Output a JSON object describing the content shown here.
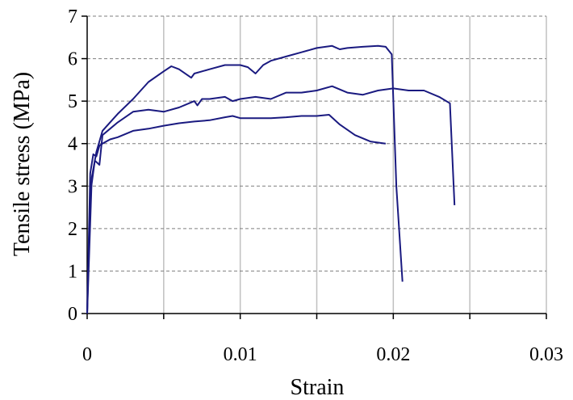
{
  "chart_data": {
    "type": "line",
    "title": "",
    "xlabel": "Strain",
    "ylabel": "Tensile stress (MPa)",
    "xlim": [
      0,
      0.03
    ],
    "ylim": [
      0,
      7
    ],
    "xticks": [
      0,
      0.005,
      0.01,
      0.015,
      0.02,
      0.025,
      0.03
    ],
    "xtick_labels": [
      "0",
      "",
      "0.01",
      "",
      "0.02",
      "",
      "0.03"
    ],
    "yticks": [
      0,
      1,
      2,
      3,
      4,
      5,
      6,
      7
    ],
    "ytick_labels": [
      "0",
      "1",
      "2",
      "3",
      "4",
      "5",
      "6",
      "7"
    ],
    "grid": {
      "vertical": true,
      "horizontal": "dashed"
    },
    "colors": {
      "series": "#1a1a80",
      "grid_v": "#c0c0c0",
      "grid_h": "#7f7f7f"
    },
    "series": [
      {
        "x": [
          0,
          0.0002,
          0.0004,
          0.0006,
          0.0008,
          0.001,
          0.0015,
          0.002,
          0.003,
          0.004,
          0.005,
          0.006,
          0.007,
          0.008,
          0.009,
          0.0095,
          0.01,
          0.011,
          0.012,
          0.013,
          0.014,
          0.015,
          0.0158,
          0.0165,
          0.0175,
          0.0185,
          0.0195
        ],
        "y": [
          0,
          3.3,
          3.75,
          3.7,
          3.95,
          4.0,
          4.1,
          4.15,
          4.3,
          4.35,
          4.42,
          4.48,
          4.52,
          4.55,
          4.62,
          4.65,
          4.6,
          4.6,
          4.6,
          4.62,
          4.65,
          4.65,
          4.68,
          4.45,
          4.2,
          4.05,
          4.0
        ]
      },
      {
        "x": [
          0,
          0.0002,
          0.0005,
          0.0008,
          0.001,
          0.0015,
          0.002,
          0.003,
          0.004,
          0.005,
          0.006,
          0.007,
          0.0072,
          0.0075,
          0.008,
          0.009,
          0.0095,
          0.01,
          0.011,
          0.012,
          0.013,
          0.014,
          0.015,
          0.016,
          0.017,
          0.018,
          0.019,
          0.02,
          0.021,
          0.022,
          0.023,
          0.0237,
          0.024
        ],
        "y": [
          0,
          2.8,
          3.6,
          3.5,
          4.2,
          4.35,
          4.5,
          4.75,
          4.8,
          4.75,
          4.85,
          5.0,
          4.9,
          5.05,
          5.05,
          5.1,
          5.0,
          5.05,
          5.1,
          5.05,
          5.2,
          5.2,
          5.25,
          5.35,
          5.2,
          5.15,
          5.25,
          5.3,
          5.25,
          5.25,
          5.1,
          4.95,
          2.55
        ]
      },
      {
        "x": [
          0,
          0.0003,
          0.0006,
          0.001,
          0.0015,
          0.002,
          0.003,
          0.004,
          0.005,
          0.0055,
          0.006,
          0.0068,
          0.007,
          0.008,
          0.009,
          0.01,
          0.0105,
          0.011,
          0.0115,
          0.012,
          0.013,
          0.014,
          0.015,
          0.016,
          0.0165,
          0.017,
          0.018,
          0.019,
          0.0195,
          0.0199,
          0.0202,
          0.0206
        ],
        "y": [
          0,
          3.2,
          3.8,
          4.3,
          4.5,
          4.7,
          5.05,
          5.45,
          5.7,
          5.82,
          5.75,
          5.55,
          5.65,
          5.75,
          5.85,
          5.85,
          5.8,
          5.65,
          5.85,
          5.95,
          6.05,
          6.15,
          6.25,
          6.3,
          6.22,
          6.25,
          6.28,
          6.3,
          6.28,
          6.1,
          3.0,
          0.75
        ]
      }
    ]
  }
}
